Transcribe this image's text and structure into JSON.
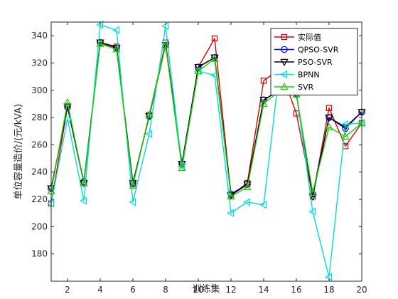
{
  "chart_data": {
    "type": "line",
    "title": "",
    "xlabel": "训练集",
    "ylabel": "单位容量造价/(元/kVA)",
    "xlim": [
      1,
      20
    ],
    "ylim": [
      160,
      350
    ],
    "xticks": [
      2,
      4,
      6,
      8,
      10,
      12,
      14,
      16,
      18,
      20
    ],
    "yticks": [
      180,
      200,
      220,
      240,
      260,
      280,
      300,
      320,
      340
    ],
    "grid": false,
    "legend_position": "top-right",
    "x": [
      1,
      2,
      3,
      4,
      5,
      6,
      7,
      8,
      9,
      10,
      11,
      12,
      13,
      14,
      15,
      16,
      17,
      18,
      19,
      20
    ],
    "series": [
      {
        "name": "实际值",
        "color": "#dd0000",
        "marker": "square",
        "values": [
          217,
          288,
          232,
          335,
          332,
          231,
          282,
          335,
          246,
          317,
          338,
          223,
          232,
          307,
          316,
          283,
          222,
          287,
          259,
          276
        ]
      },
      {
        "name": "QPSO-SVR",
        "color": "#0000ff",
        "marker": "circle",
        "values": [
          228,
          288,
          233,
          335,
          331,
          232,
          281,
          333,
          246,
          317,
          324,
          224,
          231,
          293,
          300,
          297,
          224,
          280,
          272,
          284
        ]
      },
      {
        "name": "PSO-SVR",
        "color": "#000000",
        "marker": "triangle-down",
        "values": [
          228,
          288,
          232,
          335,
          331,
          232,
          281,
          333,
          246,
          317,
          324,
          223,
          231,
          293,
          300,
          297,
          222,
          280,
          273,
          284
        ]
      },
      {
        "name": "BPNN",
        "color": "#00dddd",
        "marker": "triangle-left",
        "values": [
          217,
          279,
          219,
          348,
          344,
          218,
          268,
          347,
          244,
          314,
          311,
          210,
          218,
          216,
          318,
          298,
          211,
          163,
          275,
          276
        ]
      },
      {
        "name": "SVR",
        "color": "#22cc00",
        "marker": "triangle-up",
        "values": [
          226,
          291,
          232,
          334,
          330,
          230,
          282,
          333,
          243,
          314,
          323,
          222,
          229,
          290,
          300,
          297,
          225,
          273,
          266,
          276
        ]
      }
    ]
  }
}
